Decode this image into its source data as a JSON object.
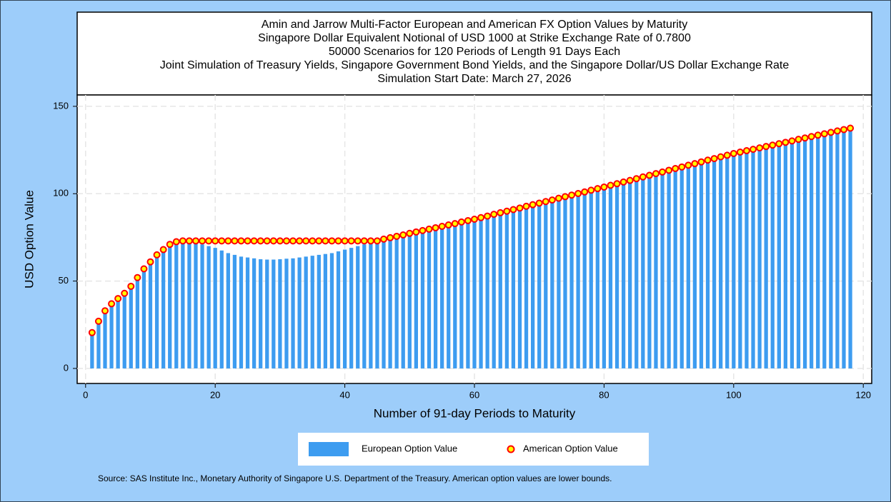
{
  "chart_data": {
    "type": "bar-scatter",
    "title": [
      "Amin and Jarrow Multi-Factor European and American FX Option Values by Maturity",
      "Singapore Dollar Equivalent Notional of USD 1000 at Strike Exchange Rate of  0.7800",
      "50000 Scenarios for 120 Periods of Length 91 Days Each",
      "Joint Simulation of Treasury Yields, Singapore Government Bond Yields, and the Singapore Dollar/US Dollar Exchange Rate",
      "Simulation Start Date: March 27, 2026"
    ],
    "xlabel": "Number of 91-day Periods to Maturity",
    "ylabel": "USD Option Value",
    "source": "Source: SAS Institute Inc., Monetary Authority of Singapore U.S. Department of the Treasury. American option values are lower bounds.",
    "xlim": [
      -1.3,
      121.3
    ],
    "ylim": [
      -8.6,
      156.5
    ],
    "xticks": [
      0,
      20,
      40,
      60,
      80,
      100,
      120
    ],
    "yticks": [
      0,
      50,
      100,
      150
    ],
    "grid": true,
    "x": [
      1,
      2,
      3,
      4,
      5,
      6,
      7,
      8,
      9,
      10,
      11,
      12,
      13,
      14,
      15,
      16,
      17,
      18,
      19,
      20,
      21,
      22,
      23,
      24,
      25,
      26,
      27,
      28,
      29,
      30,
      31,
      32,
      33,
      34,
      35,
      36,
      37,
      38,
      39,
      40,
      41,
      42,
      43,
      44,
      45,
      46,
      47,
      48,
      49,
      50,
      51,
      52,
      53,
      54,
      55,
      56,
      57,
      58,
      59,
      60,
      61,
      62,
      63,
      64,
      65,
      66,
      67,
      68,
      69,
      70,
      71,
      72,
      73,
      74,
      75,
      76,
      77,
      78,
      79,
      80,
      81,
      82,
      83,
      84,
      85,
      86,
      87,
      88,
      89,
      90,
      91,
      92,
      93,
      94,
      95,
      96,
      97,
      98,
      99,
      100,
      101,
      102,
      103,
      104,
      105,
      106,
      107,
      108,
      109,
      110,
      111,
      112,
      113,
      114,
      115,
      116,
      117,
      118
    ],
    "series": [
      {
        "name": "European Option Value",
        "color": "#3d9cf0",
        "mark": "bar",
        "values": [
          20,
          26.5,
          32.5,
          36.5,
          39.5,
          42.5,
          46.5,
          51.5,
          56.5,
          60.5,
          64.5,
          67.5,
          70.5,
          72,
          72,
          72,
          72,
          71,
          70,
          69,
          67.5,
          66,
          65,
          64,
          63.5,
          63,
          62.5,
          62.3,
          62.3,
          62.5,
          62.8,
          63,
          63.5,
          64,
          64.5,
          65,
          65.5,
          66,
          67,
          68,
          69,
          70,
          71,
          72,
          72.5,
          73.0,
          73.8,
          74.6,
          75.4,
          76.3,
          77.1,
          77.9,
          78.7,
          79.5,
          80.3,
          81.1,
          81.9,
          82.8,
          83.6,
          84.4,
          85.3,
          86.2,
          87.2,
          88.1,
          89.0,
          89.9,
          90.8,
          91.8,
          92.7,
          93.6,
          94.5,
          95.4,
          96.4,
          97.3,
          98.2,
          99.1,
          100.0,
          101.0,
          101.9,
          102.8,
          103.8,
          104.7,
          105.7,
          106.6,
          107.6,
          108.6,
          109.5,
          110.5,
          111.4,
          112.4,
          113.4,
          114.3,
          115.3,
          116.2,
          117.2,
          118.2,
          119.1,
          120.1,
          121.0,
          122.0,
          122.8,
          123.6,
          124.4,
          125.2,
          126.0,
          126.8,
          127.6,
          128.4,
          129.2,
          130.1,
          130.9,
          131.7,
          132.5,
          133.3,
          134.1,
          134.9,
          135.7,
          136.5
        ]
      },
      {
        "name": "American Option Value",
        "color": "#ff0000",
        "fill": "#ffff00",
        "mark": "dot",
        "values": [
          20.5,
          27,
          33,
          37,
          40,
          43,
          47,
          52,
          57,
          61,
          65,
          68,
          71,
          72.5,
          73,
          73,
          73,
          73,
          73,
          73,
          73,
          73,
          73,
          73,
          73,
          73,
          73,
          73,
          73,
          73,
          73,
          73,
          73,
          73,
          73,
          73,
          73,
          73,
          73,
          73,
          73,
          73,
          73,
          73,
          73,
          74.0,
          74.8,
          75.6,
          76.4,
          77.3,
          78.1,
          78.9,
          79.7,
          80.5,
          81.3,
          82.1,
          82.9,
          83.8,
          84.6,
          85.4,
          86.3,
          87.2,
          88.2,
          89.1,
          90.0,
          90.9,
          91.8,
          92.8,
          93.7,
          94.6,
          95.5,
          96.4,
          97.4,
          98.3,
          99.2,
          100.1,
          101.0,
          102.0,
          102.9,
          103.8,
          104.8,
          105.7,
          106.7,
          107.6,
          108.6,
          109.6,
          110.5,
          111.5,
          112.4,
          113.4,
          114.4,
          115.3,
          116.3,
          117.2,
          118.2,
          119.2,
          120.1,
          121.1,
          122.0,
          123.0,
          123.8,
          124.6,
          125.4,
          126.2,
          127.0,
          127.8,
          128.6,
          129.4,
          130.2,
          131.1,
          131.9,
          132.7,
          133.5,
          134.3,
          135.1,
          135.9,
          136.7,
          137.5
        ]
      }
    ]
  }
}
